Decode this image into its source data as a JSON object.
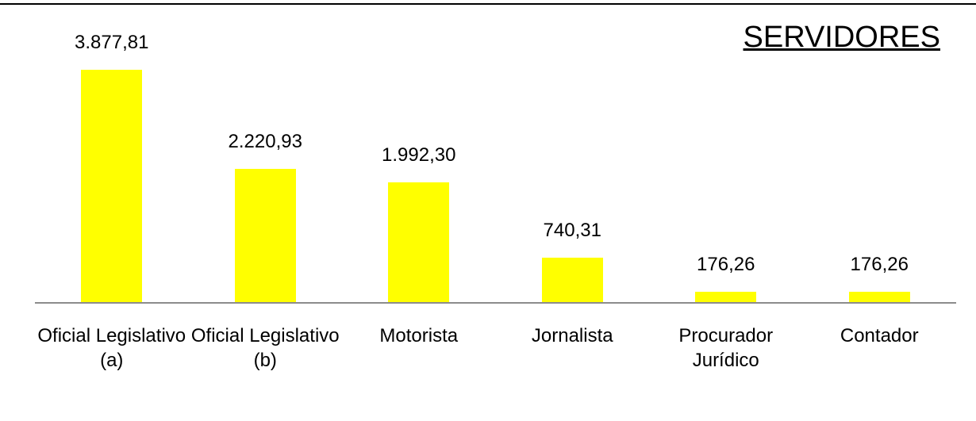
{
  "chart_data": {
    "type": "bar",
    "title": "SERVIDORES",
    "categories": [
      "Oficial Legislativo (a)",
      "Oficial Legislativo (b)",
      "Motorista",
      "Jornalista",
      "Procurador Jurídico",
      "Contador"
    ],
    "values": [
      3877.81,
      2220.93,
      1992.3,
      740.31,
      176.26,
      176.26
    ],
    "value_labels": [
      "3.877,81",
      "2.220,93",
      "1.992,30",
      "740,31",
      "176,26",
      "176,26"
    ],
    "color": "#ffff00"
  }
}
